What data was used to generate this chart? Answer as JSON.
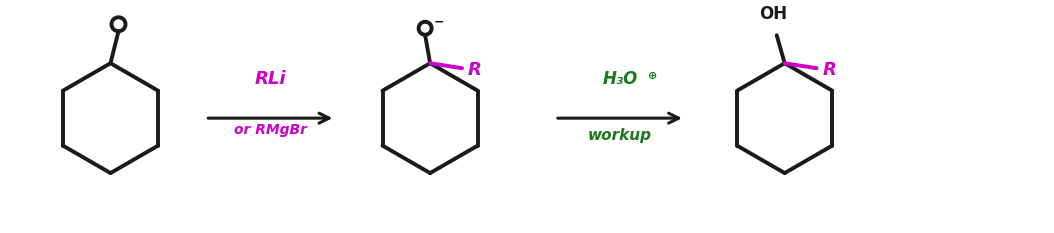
{
  "bg_color": "#ffffff",
  "black": "#1a1a1a",
  "purple": "#cc00cc",
  "green": "#1a7a1a",
  "arrow_color": "#1a1a1a",
  "figsize": [
    10.54,
    2.33
  ],
  "dpi": 100,
  "reagent1_line1": "RLi",
  "reagent1_line2": "or RMgBr",
  "reagent2_line1": "H₃O⁺",
  "reagent2_line2": "workup"
}
